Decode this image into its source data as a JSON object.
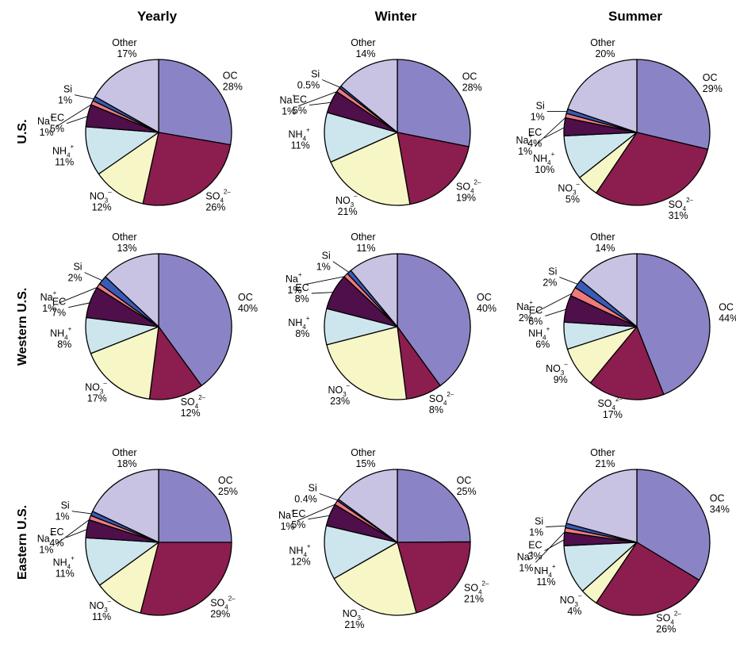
{
  "colors": {
    "OC": "#8a84c6",
    "SO4": "#8b1e4e",
    "NO3": "#f7f6c6",
    "NH4": "#cde6ee",
    "EC": "#4e0f4a",
    "Na": "#ee7a7e",
    "Si": "#3a5bb5",
    "Other": "#c8c3e3"
  },
  "chart_data": {
    "type": "pie",
    "columns": [
      "Yearly",
      "Winter",
      "Summer"
    ],
    "rows": [
      "U.S.",
      "Western U.S.",
      "Eastern U.S."
    ],
    "category_order": [
      "OC",
      "SO4",
      "NO3",
      "NH4",
      "EC",
      "Na",
      "Si",
      "Other"
    ],
    "pies": [
      {
        "row": "U.S.",
        "column": "Yearly",
        "slices": [
          {
            "key": "OC",
            "name": "OC",
            "sup": "",
            "sub": "",
            "label": "28%",
            "value": 28
          },
          {
            "key": "SO4",
            "name": "SO",
            "sup": "2–",
            "sub": "4",
            "label": "26%",
            "value": 26
          },
          {
            "key": "NO3",
            "name": "NO",
            "sup": "–",
            "sub": "3",
            "label": "12%",
            "value": 12
          },
          {
            "key": "NH4",
            "name": "NH",
            "sup": "+",
            "sub": "4",
            "label": "11%",
            "value": 11
          },
          {
            "key": "EC",
            "name": "EC",
            "sup": "",
            "sub": "",
            "label": "5%",
            "value": 5
          },
          {
            "key": "Na",
            "name": "Na",
            "sup": "+",
            "sub": "",
            "label": "1%",
            "value": 1
          },
          {
            "key": "Si",
            "name": "Si",
            "sup": "",
            "sub": "",
            "label": "1%",
            "value": 1
          },
          {
            "key": "Other",
            "name": "Other",
            "sup": "",
            "sub": "",
            "label": "17%",
            "value": 17
          }
        ]
      },
      {
        "row": "U.S.",
        "column": "Winter",
        "slices": [
          {
            "key": "OC",
            "name": "OC",
            "sup": "",
            "sub": "",
            "label": "28%",
            "value": 28
          },
          {
            "key": "SO4",
            "name": "SO",
            "sup": "2–",
            "sub": "4",
            "label": "19%",
            "value": 19
          },
          {
            "key": "NO3",
            "name": "NO",
            "sup": "–",
            "sub": "3",
            "label": "21%",
            "value": 21
          },
          {
            "key": "NH4",
            "name": "NH",
            "sup": "+",
            "sub": "4",
            "label": "11%",
            "value": 11
          },
          {
            "key": "EC",
            "name": "EC",
            "sup": "",
            "sub": "",
            "label": "5%",
            "value": 5
          },
          {
            "key": "Na",
            "name": "Na",
            "sup": "+",
            "sub": "",
            "label": "1%",
            "value": 1
          },
          {
            "key": "Si",
            "name": "Si",
            "sup": "",
            "sub": "",
            "label": "0.5%",
            "value": 0.5
          },
          {
            "key": "Other",
            "name": "Other",
            "sup": "",
            "sub": "",
            "label": "14%",
            "value": 14
          }
        ]
      },
      {
        "row": "U.S.",
        "column": "Summer",
        "slices": [
          {
            "key": "OC",
            "name": "OC",
            "sup": "",
            "sub": "",
            "label": "29%",
            "value": 29
          },
          {
            "key": "SO4",
            "name": "SO",
            "sup": "2–",
            "sub": "4",
            "label": "31%",
            "value": 31
          },
          {
            "key": "NO3",
            "name": "NO",
            "sup": "–",
            "sub": "3",
            "label": "5%",
            "value": 5
          },
          {
            "key": "NH4",
            "name": "NH",
            "sup": "+",
            "sub": "4",
            "label": "10%",
            "value": 10
          },
          {
            "key": "EC",
            "name": "EC",
            "sup": "",
            "sub": "",
            "label": "4%",
            "value": 4
          },
          {
            "key": "Na",
            "name": "Na",
            "sup": "+",
            "sub": "",
            "label": "1%",
            "value": 1
          },
          {
            "key": "Si",
            "name": "Si",
            "sup": "",
            "sub": "",
            "label": "1%",
            "value": 1
          },
          {
            "key": "Other",
            "name": "Other",
            "sup": "",
            "sub": "",
            "label": "20%",
            "value": 20
          }
        ]
      },
      {
        "row": "Western U.S.",
        "column": "Yearly",
        "slices": [
          {
            "key": "OC",
            "name": "OC",
            "sup": "",
            "sub": "",
            "label": "40%",
            "value": 40
          },
          {
            "key": "SO4",
            "name": "SO",
            "sup": "2–",
            "sub": "4",
            "label": "12%",
            "value": 12
          },
          {
            "key": "NO3",
            "name": "NO",
            "sup": "–",
            "sub": "3",
            "label": "17%",
            "value": 17
          },
          {
            "key": "NH4",
            "name": "NH",
            "sup": "+",
            "sub": "4",
            "label": "8%",
            "value": 8
          },
          {
            "key": "EC",
            "name": "EC",
            "sup": "",
            "sub": "",
            "label": "7%",
            "value": 7
          },
          {
            "key": "Na",
            "name": "Na",
            "sup": "+",
            "sub": "",
            "label": "1%",
            "value": 1
          },
          {
            "key": "Si",
            "name": "Si",
            "sup": "",
            "sub": "",
            "label": "2%",
            "value": 2
          },
          {
            "key": "Other",
            "name": "Other",
            "sup": "",
            "sub": "",
            "label": "13%",
            "value": 13
          }
        ]
      },
      {
        "row": "Western U.S.",
        "column": "Winter",
        "slices": [
          {
            "key": "OC",
            "name": "OC",
            "sup": "",
            "sub": "",
            "label": "40%",
            "value": 40
          },
          {
            "key": "SO4",
            "name": "SO",
            "sup": "2–",
            "sub": "4",
            "label": "8%",
            "value": 8
          },
          {
            "key": "NO3",
            "name": "NO",
            "sup": "–",
            "sub": "3",
            "label": "23%",
            "value": 23
          },
          {
            "key": "NH4",
            "name": "NH",
            "sup": "+",
            "sub": "4",
            "label": "8%",
            "value": 8
          },
          {
            "key": "EC",
            "name": "EC",
            "sup": "",
            "sub": "",
            "label": "8%",
            "value": 8
          },
          {
            "key": "Na",
            "name": "Na",
            "sup": "+",
            "sub": "",
            "label": "1%",
            "value": 1
          },
          {
            "key": "Si",
            "name": "Si",
            "sup": "",
            "sub": "",
            "label": "1%",
            "value": 1
          },
          {
            "key": "Other",
            "name": "Other",
            "sup": "",
            "sub": "",
            "label": "11%",
            "value": 11
          }
        ]
      },
      {
        "row": "Western U.S.",
        "column": "Summer",
        "slices": [
          {
            "key": "OC",
            "name": "OC",
            "sup": "",
            "sub": "",
            "label": "44%",
            "value": 44
          },
          {
            "key": "SO4",
            "name": "SO",
            "sup": "2–",
            "sub": "4",
            "label": "17%",
            "value": 17
          },
          {
            "key": "NO3",
            "name": "NO",
            "sup": "–",
            "sub": "3",
            "label": "9%",
            "value": 9
          },
          {
            "key": "NH4",
            "name": "NH",
            "sup": "+",
            "sub": "4",
            "label": "6%",
            "value": 6
          },
          {
            "key": "EC",
            "name": "EC",
            "sup": "",
            "sub": "",
            "label": "6%",
            "value": 6
          },
          {
            "key": "Na",
            "name": "Na",
            "sup": "+",
            "sub": "",
            "label": "2%",
            "value": 2
          },
          {
            "key": "Si",
            "name": "Si",
            "sup": "",
            "sub": "",
            "label": "2%",
            "value": 2
          },
          {
            "key": "Other",
            "name": "Other",
            "sup": "",
            "sub": "",
            "label": "14%",
            "value": 14
          }
        ]
      },
      {
        "row": "Eastern U.S.",
        "column": "Yearly",
        "slices": [
          {
            "key": "OC",
            "name": "OC",
            "sup": "",
            "sub": "",
            "label": "25%",
            "value": 25
          },
          {
            "key": "SO4",
            "name": "SO",
            "sup": "2–",
            "sub": "4",
            "label": "29%",
            "value": 29
          },
          {
            "key": "NO3",
            "name": "NO",
            "sup": "–",
            "sub": "3",
            "label": "11%",
            "value": 11
          },
          {
            "key": "NH4",
            "name": "NH",
            "sup": "+",
            "sub": "4",
            "label": "11%",
            "value": 11
          },
          {
            "key": "EC",
            "name": "EC",
            "sup": "",
            "sub": "",
            "label": "4%",
            "value": 4
          },
          {
            "key": "Na",
            "name": "Na",
            "sup": "+",
            "sub": "",
            "label": "1%",
            "value": 1
          },
          {
            "key": "Si",
            "name": "Si",
            "sup": "",
            "sub": "",
            "label": "1%",
            "value": 1
          },
          {
            "key": "Other",
            "name": "Other",
            "sup": "",
            "sub": "",
            "label": "18%",
            "value": 18
          }
        ]
      },
      {
        "row": "Eastern U.S.",
        "column": "Winter",
        "slices": [
          {
            "key": "OC",
            "name": "OC",
            "sup": "",
            "sub": "",
            "label": "25%",
            "value": 25
          },
          {
            "key": "SO4",
            "name": "SO",
            "sup": "2–",
            "sub": "4",
            "label": "21%",
            "value": 21
          },
          {
            "key": "NO3",
            "name": "NO",
            "sup": "–",
            "sub": "3",
            "label": "21%",
            "value": 21
          },
          {
            "key": "NH4",
            "name": "NH",
            "sup": "+",
            "sub": "4",
            "label": "12%",
            "value": 12
          },
          {
            "key": "EC",
            "name": "EC",
            "sup": "",
            "sub": "",
            "label": "5%",
            "value": 5
          },
          {
            "key": "Na",
            "name": "Na",
            "sup": "+",
            "sub": "",
            "label": "1%",
            "value": 1
          },
          {
            "key": "Si",
            "name": "Si",
            "sup": "",
            "sub": "",
            "label": "0.4%",
            "value": 0.4
          },
          {
            "key": "Other",
            "name": "Other",
            "sup": "",
            "sub": "",
            "label": "15%",
            "value": 15
          }
        ]
      },
      {
        "row": "Eastern U.S.",
        "column": "Summer",
        "slices": [
          {
            "key": "OC",
            "name": "OC",
            "sup": "",
            "sub": "",
            "label": "34%",
            "value": 34
          },
          {
            "key": "SO4",
            "name": "SO",
            "sup": "2–",
            "sub": "4",
            "label": "26%",
            "value": 26
          },
          {
            "key": "NO3",
            "name": "NO",
            "sup": "–",
            "sub": "3",
            "label": "4%",
            "value": 4
          },
          {
            "key": "NH4",
            "name": "NH",
            "sup": "+",
            "sub": "4",
            "label": "11%",
            "value": 11
          },
          {
            "key": "EC",
            "name": "EC",
            "sup": "",
            "sub": "",
            "label": "3%",
            "value": 3
          },
          {
            "key": "Na",
            "name": "Na",
            "sup": "+",
            "sub": "",
            "label": "1%",
            "value": 1
          },
          {
            "key": "Si",
            "name": "Si",
            "sup": "",
            "sub": "",
            "label": "1%",
            "value": 1
          },
          {
            "key": "Other",
            "name": "Other",
            "sup": "",
            "sub": "",
            "label": "21%",
            "value": 21
          }
        ]
      }
    ]
  }
}
